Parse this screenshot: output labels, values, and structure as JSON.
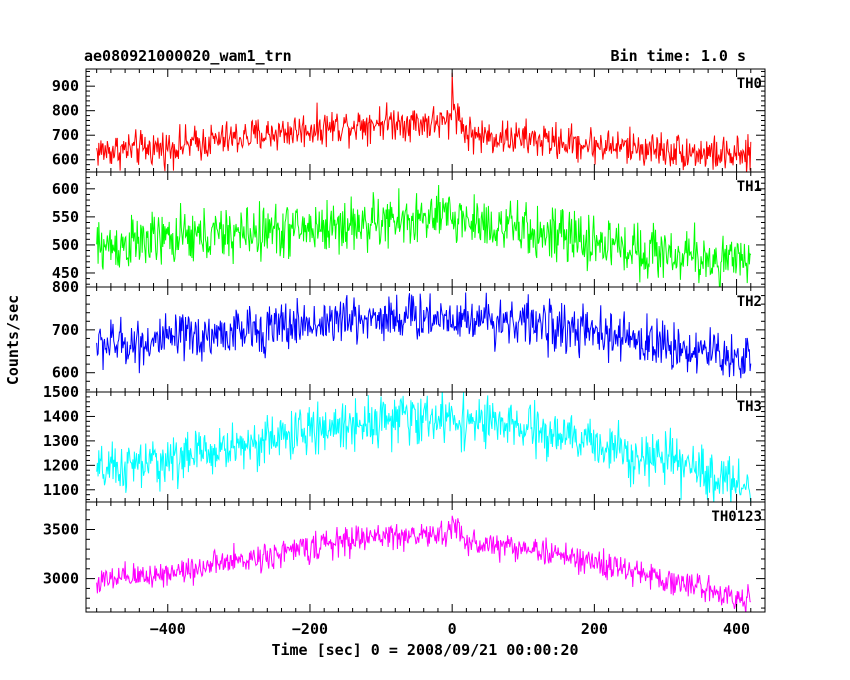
{
  "header": {
    "title": "ae080921000020_wam1_trn",
    "bin_time": "Bin time: 1.0 s"
  },
  "chart_data": {
    "type": "line",
    "xlabel": "Time [sec] 0 = 2008/09/21 00:00:20",
    "ylabel": "Counts/sec",
    "xlim": [
      -515,
      440
    ],
    "x_ticks": [
      -400,
      -200,
      0,
      200,
      400
    ],
    "x_range": [
      -500,
      420
    ],
    "x_step": 1,
    "panels": [
      {
        "label": "TH0",
        "color": "#ff0000",
        "ylim": [
          550,
          970
        ],
        "y_ticks": [
          600,
          700,
          800,
          900
        ],
        "trend_x": [
          -500,
          -400,
          -300,
          -200,
          -100,
          -10,
          0,
          20,
          100,
          200,
          300,
          420
        ],
        "trend_y": [
          635,
          650,
          690,
          725,
          755,
          750,
          760,
          700,
          685,
          660,
          640,
          610
        ],
        "noise": 36,
        "spike": {
          "x": 0,
          "peak": 960,
          "decay": 8
        }
      },
      {
        "label": "TH1",
        "color": "#00ff00",
        "ylim": [
          425,
          630
        ],
        "y_ticks": [
          450,
          500,
          550,
          600
        ],
        "trend_x": [
          -500,
          -400,
          -300,
          -200,
          -100,
          0,
          100,
          200,
          300,
          420
        ],
        "trend_y": [
          495,
          510,
          520,
          530,
          540,
          550,
          525,
          505,
          485,
          465
        ],
        "noise": 24,
        "spike": null
      },
      {
        "label": "TH2",
        "color": "#0000ff",
        "ylim": [
          555,
          800
        ],
        "y_ticks": [
          600,
          700,
          800
        ],
        "trend_x": [
          -500,
          -400,
          -300,
          -200,
          -100,
          0,
          100,
          200,
          300,
          420
        ],
        "trend_y": [
          665,
          675,
          695,
          715,
          730,
          730,
          720,
          690,
          665,
          630
        ],
        "noise": 28,
        "spike": null
      },
      {
        "label": "TH3",
        "color": "#00ffff",
        "ylim": [
          1050,
          1500
        ],
        "y_ticks": [
          1100,
          1200,
          1300,
          1400,
          1500
        ],
        "trend_x": [
          -500,
          -400,
          -300,
          -200,
          -100,
          0,
          100,
          200,
          300,
          420
        ],
        "trend_y": [
          1170,
          1220,
          1280,
          1340,
          1390,
          1390,
          1350,
          1290,
          1220,
          1110
        ],
        "noise": 50,
        "spike": null
      },
      {
        "label": "TH0123",
        "color": "#ff00ff",
        "ylim": [
          2660,
          3780
        ],
        "y_ticks": [
          3000,
          3500
        ],
        "trend_x": [
          -500,
          -400,
          -300,
          -200,
          -100,
          -10,
          0,
          20,
          100,
          200,
          300,
          420
        ],
        "trend_y": [
          2960,
          3060,
          3180,
          3320,
          3440,
          3440,
          3500,
          3360,
          3320,
          3160,
          2990,
          2790
        ],
        "noise": 70,
        "spike": {
          "x": 0,
          "peak": 3760,
          "decay": 6
        }
      }
    ]
  }
}
